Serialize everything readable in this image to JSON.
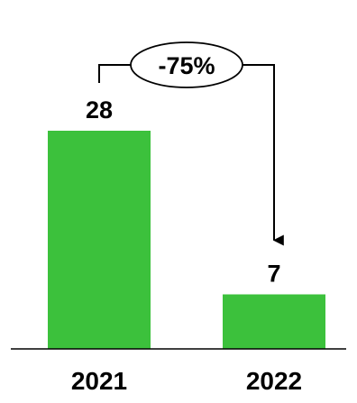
{
  "chart_data": {
    "type": "bar",
    "categories": [
      "2021",
      "2022"
    ],
    "values": [
      28,
      7
    ],
    "value_labels": [
      "28",
      "7"
    ],
    "ylim": [
      0,
      28
    ],
    "grid": false,
    "bar_color": "#3cc13c",
    "annotation": {
      "text": "-75%",
      "from": "2021",
      "to": "2022"
    }
  }
}
